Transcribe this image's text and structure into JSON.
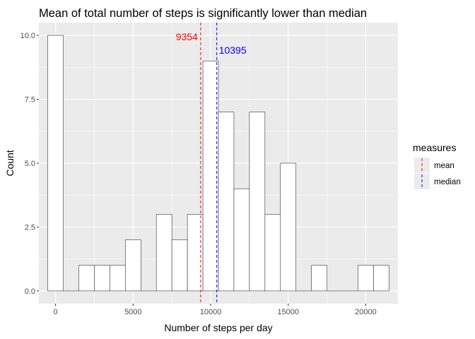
{
  "chart_data": {
    "type": "bar",
    "title": "Mean of total number of steps is significantly lower than median",
    "xlabel": "Number of steps per day",
    "ylabel": "Count",
    "bins": [
      {
        "x_min": -500,
        "x_max": 500,
        "count": 10
      },
      {
        "x_min": 500,
        "x_max": 1500,
        "count": 0
      },
      {
        "x_min": 1500,
        "x_max": 2500,
        "count": 1
      },
      {
        "x_min": 2500,
        "x_max": 3500,
        "count": 1
      },
      {
        "x_min": 3500,
        "x_max": 4500,
        "count": 1
      },
      {
        "x_min": 4500,
        "x_max": 5500,
        "count": 2
      },
      {
        "x_min": 5500,
        "x_max": 6500,
        "count": 0
      },
      {
        "x_min": 6500,
        "x_max": 7500,
        "count": 3
      },
      {
        "x_min": 7500,
        "x_max": 8500,
        "count": 2
      },
      {
        "x_min": 8500,
        "x_max": 9500,
        "count": 3
      },
      {
        "x_min": 9500,
        "x_max": 10500,
        "count": 9
      },
      {
        "x_min": 10500,
        "x_max": 11500,
        "count": 7
      },
      {
        "x_min": 11500,
        "x_max": 12500,
        "count": 4
      },
      {
        "x_min": 12500,
        "x_max": 13500,
        "count": 7
      },
      {
        "x_min": 13500,
        "x_max": 14500,
        "count": 3
      },
      {
        "x_min": 14500,
        "x_max": 15500,
        "count": 5
      },
      {
        "x_min": 15500,
        "x_max": 16500,
        "count": 0
      },
      {
        "x_min": 16500,
        "x_max": 17500,
        "count": 1
      },
      {
        "x_min": 17500,
        "x_max": 18500,
        "count": 0
      },
      {
        "x_min": 18500,
        "x_max": 19500,
        "count": 0
      },
      {
        "x_min": 19500,
        "x_max": 20500,
        "count": 1
      },
      {
        "x_min": 20500,
        "x_max": 21500,
        "count": 1
      }
    ],
    "xlim": [
      -1075,
      22075
    ],
    "ylim": [
      -0.5,
      10.5
    ],
    "x_ticks": [
      0,
      5000,
      10000,
      15000,
      20000
    ],
    "x_tick_labels": [
      "0",
      "5000",
      "10000",
      "15000",
      "20000"
    ],
    "y_ticks": [
      0,
      2.5,
      5,
      7.5,
      10
    ],
    "y_tick_labels": [
      "0.0",
      "2.5",
      "5.0",
      "7.5",
      "10.0"
    ],
    "reference_lines": [
      {
        "name": "mean",
        "value": 9354,
        "label": "9354",
        "color": "#ff0000",
        "style": "dashed"
      },
      {
        "name": "median",
        "value": 10395,
        "label": "10395",
        "color": "#0000ff",
        "style": "dashed"
      }
    ],
    "legend": {
      "title": "measures",
      "position": "right",
      "entries": [
        "mean",
        "median"
      ]
    },
    "grid": true,
    "panel_background": "#ebebeb",
    "bar_fill": "#ffffff",
    "bar_outline": "#333333"
  }
}
